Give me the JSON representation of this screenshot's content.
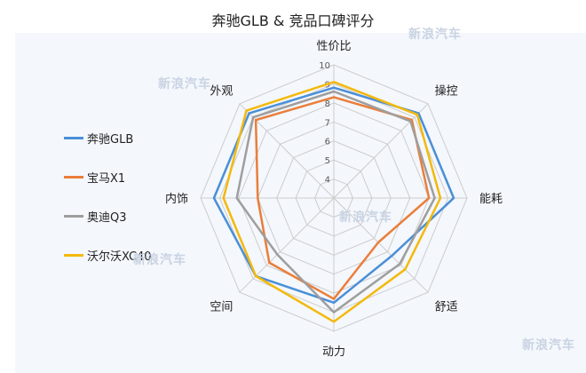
{
  "colors": {
    "background": "#f4f7fc",
    "grid": "#cccccc"
  },
  "watermark": "新浪汽车",
  "chart_data": {
    "type": "radar",
    "title": "奔驰GLB & 竞品口碑评分",
    "axes": [
      "性价比",
      "操控",
      "能耗",
      "舒适",
      "动力",
      "空间",
      "内饰",
      "外观"
    ],
    "range": [
      3,
      10
    ],
    "ticks": [
      4,
      5,
      6,
      7,
      8,
      9,
      10
    ],
    "legend_position": "left",
    "series": [
      {
        "name": "奔驰GLB",
        "color": "#4a8fd8",
        "values": [
          8.8,
          9.3,
          9.3,
          7.3,
          8.5,
          8.8,
          9.3,
          9.3
        ]
      },
      {
        "name": "宝马X1",
        "color": "#ea7e3a",
        "values": [
          8.3,
          8.8,
          8.0,
          6.3,
          8.3,
          7.8,
          7.0,
          8.8
        ]
      },
      {
        "name": "奥迪Q3",
        "color": "#9e9e9e",
        "values": [
          8.6,
          8.7,
          8.3,
          7.9,
          9.0,
          7.2,
          8.1,
          9.0
        ]
      },
      {
        "name": "沃尔沃XC40",
        "color": "#f3b90c",
        "values": [
          9.1,
          9.2,
          8.6,
          8.3,
          9.5,
          8.8,
          8.8,
          9.5
        ]
      }
    ]
  }
}
